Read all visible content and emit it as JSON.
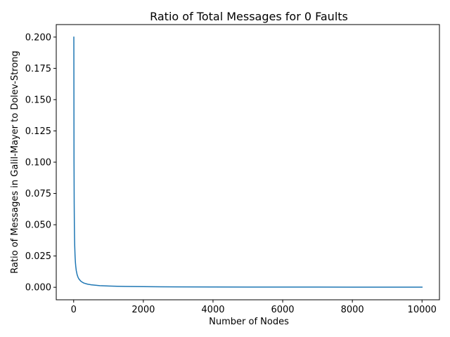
{
  "chart_data": {
    "type": "line",
    "title": "Ratio of Total Messages for 0 Faults",
    "xlabel": "Number of Nodes",
    "ylabel": "Ratio of Messages in Galil-Mayer to Dolev-Strong",
    "xlim": [
      -500,
      10500
    ],
    "ylim": [
      -0.01,
      0.21
    ],
    "x_ticks": [
      0,
      2000,
      4000,
      6000,
      8000,
      10000
    ],
    "x_tick_labels": [
      "0",
      "2000",
      "4000",
      "6000",
      "8000",
      "10000"
    ],
    "y_ticks": [
      0.0,
      0.025,
      0.05,
      0.075,
      0.1,
      0.125,
      0.15,
      0.175,
      0.2
    ],
    "y_tick_labels": [
      "0.000",
      "0.025",
      "0.050",
      "0.075",
      "0.100",
      "0.125",
      "0.150",
      "0.175",
      "0.200"
    ],
    "grid": false,
    "series_color": "#1f77b4",
    "series": [
      {
        "name": "",
        "x": [
          5,
          10,
          15,
          20,
          25,
          30,
          40,
          50,
          60,
          75,
          100,
          125,
          150,
          200,
          250,
          300,
          400,
          500,
          600,
          750,
          1000,
          1250,
          1500,
          2000,
          2500,
          3000,
          4000,
          5000,
          6000,
          7000,
          8000,
          9000,
          10000
        ],
        "y": [
          0.2,
          0.1,
          0.0667,
          0.05,
          0.04,
          0.0333,
          0.025,
          0.02,
          0.0167,
          0.0133,
          0.01,
          0.008,
          0.0067,
          0.005,
          0.004,
          0.0033,
          0.0025,
          0.002,
          0.0017,
          0.0013,
          0.001,
          0.0008,
          0.00067,
          0.0005,
          0.0004,
          0.00033,
          0.00025,
          0.0002,
          0.00017,
          0.00014,
          0.000125,
          0.00011,
          0.0001
        ]
      }
    ]
  }
}
